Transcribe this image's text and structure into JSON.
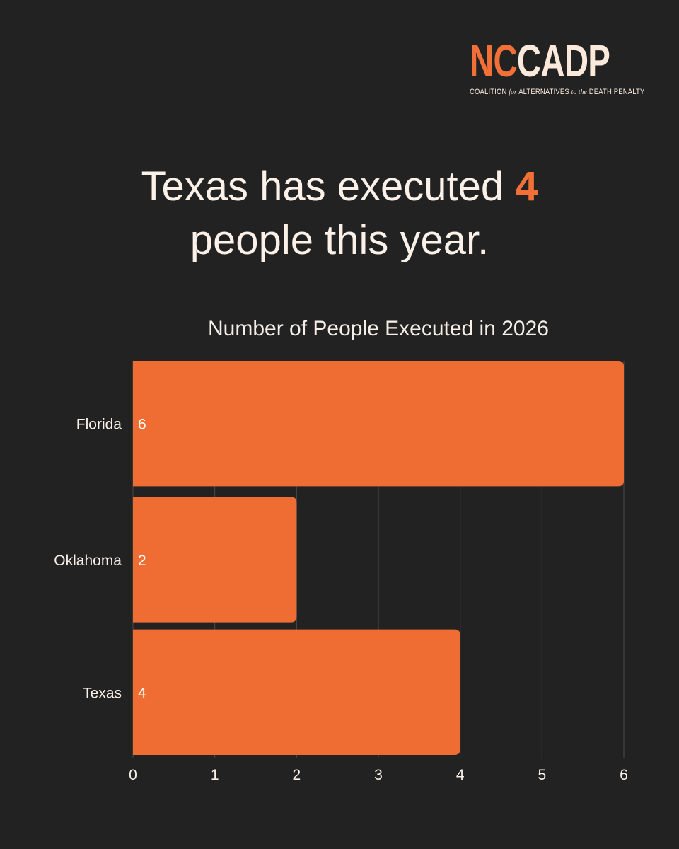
{
  "logo": {
    "mark_a": "NC",
    "mark_b": "CADP",
    "tagline": {
      "w1": "COALITION",
      "w2": "for",
      "w3": "ALTERNATIVES",
      "w4": "to the",
      "w5": "DEATH PENALTY"
    }
  },
  "headline": {
    "before": "Texas has executed ",
    "highlight": "4",
    "after": "people this year."
  },
  "colors": {
    "background": "#222222",
    "bar": "#ef6d33",
    "accent": "#f07038",
    "text": "#fbf1e8",
    "grid": "#4a4a4a"
  },
  "chart_data": {
    "type": "bar",
    "orientation": "horizontal",
    "title": "Number of People Executed in 2026",
    "categories": [
      "Florida",
      "Oklahoma",
      "Texas"
    ],
    "values": [
      6,
      2,
      4
    ],
    "data_labels": [
      "6",
      "2",
      "4"
    ],
    "xlim": [
      0,
      6
    ],
    "xticks": [
      0,
      1,
      2,
      3,
      4,
      5,
      6
    ],
    "grid": true,
    "legend": "none"
  }
}
